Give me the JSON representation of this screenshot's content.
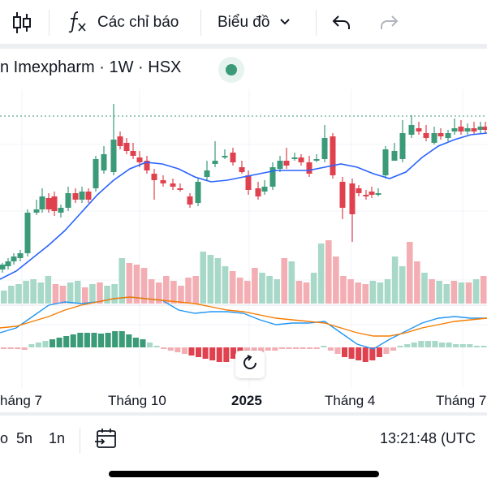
{
  "toolbar": {
    "candles_icon": "candlestick-icon",
    "indicators_icon": "fx-icon",
    "indicators_label": "Các chỉ báo",
    "chart_menu_label": "Biểu đồ",
    "undo_icon": "undo-icon",
    "redo_icon": "redo-icon"
  },
  "symbol": {
    "title": "n Imexpharm · 1W · HSX",
    "status_color": "#3b9a78"
  },
  "colors": {
    "up": "#3b9a78",
    "down": "#e0414e",
    "up_volume": "#a8d8c8",
    "down_volume": "#f3aeb4",
    "ma_line": "#2962ff",
    "macd_line": "#2196f3",
    "signal_line": "#f57c00"
  },
  "x_axis": {
    "labels": [
      "háng 7",
      "Tháng 10",
      "2025",
      "Tháng 4",
      "Tháng 7"
    ]
  },
  "bottom_bar": {
    "ranges": [
      "o",
      "5n",
      "1n"
    ],
    "goto_icon": "calendar-goto-icon",
    "clock": "13:21:48 (UTC"
  }
}
